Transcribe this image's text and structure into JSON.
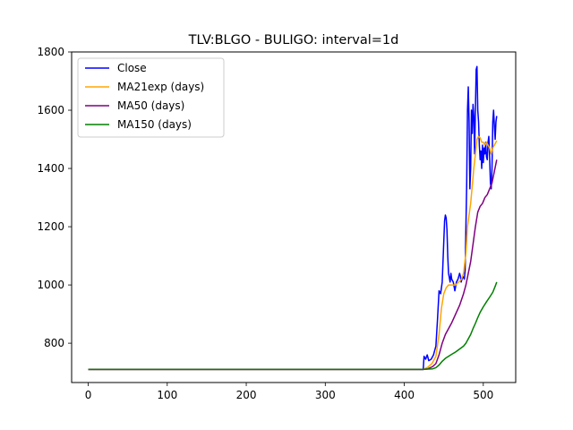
{
  "chart_data": {
    "type": "line",
    "title": "TLV:BLGO - BULIGO: interval=1d",
    "xlabel": "",
    "ylabel": "",
    "xlim": [
      -21,
      541
    ],
    "ylim": [
      665,
      1800
    ],
    "x_ticks": [
      "0",
      "100",
      "200",
      "300",
      "400",
      "500"
    ],
    "x_tick_values": [
      0,
      100,
      200,
      300,
      400,
      500
    ],
    "y_ticks": [
      "800",
      "1000",
      "1200",
      "1400",
      "1600",
      "1800"
    ],
    "y_tick_values": [
      800,
      1000,
      1200,
      1400,
      1600,
      1800
    ],
    "grid": false,
    "legend_position": "upper-left",
    "series": [
      {
        "name": "Close",
        "color": "#0000ff",
        "points": [
          [
            0,
            710
          ],
          [
            424,
            710
          ],
          [
            425,
            755
          ],
          [
            427,
            745
          ],
          [
            429,
            760
          ],
          [
            431,
            740
          ],
          [
            434,
            745
          ],
          [
            437,
            760
          ],
          [
            440,
            790
          ],
          [
            442,
            880
          ],
          [
            444,
            980
          ],
          [
            446,
            970
          ],
          [
            448,
            1010
          ],
          [
            450,
            1150
          ],
          [
            451,
            1220
          ],
          [
            452,
            1240
          ],
          [
            453,
            1230
          ],
          [
            454,
            1190
          ],
          [
            455,
            1100
          ],
          [
            456,
            1040
          ],
          [
            458,
            1010
          ],
          [
            459,
            1040
          ],
          [
            460,
            1020
          ],
          [
            462,
            1010
          ],
          [
            464,
            980
          ],
          [
            466,
            1010
          ],
          [
            468,
            1020
          ],
          [
            470,
            1040
          ],
          [
            471,
            1030
          ],
          [
            472,
            1010
          ],
          [
            474,
            1030
          ],
          [
            476,
            1020
          ],
          [
            477,
            1050
          ],
          [
            478,
            1200
          ],
          [
            479,
            1350
          ],
          [
            480,
            1600
          ],
          [
            481,
            1680
          ],
          [
            482,
            1560
          ],
          [
            483,
            1330
          ],
          [
            484,
            1400
          ],
          [
            485,
            1600
          ],
          [
            486,
            1520
          ],
          [
            487,
            1620
          ],
          [
            488,
            1580
          ],
          [
            489,
            1450
          ],
          [
            490,
            1600
          ],
          [
            491,
            1740
          ],
          [
            492,
            1750
          ],
          [
            493,
            1600
          ],
          [
            494,
            1560
          ],
          [
            495,
            1480
          ],
          [
            496,
            1430
          ],
          [
            497,
            1460
          ],
          [
            498,
            1400
          ],
          [
            499,
            1480
          ],
          [
            500,
            1420
          ],
          [
            501,
            1470
          ],
          [
            502,
            1450
          ],
          [
            503,
            1490
          ],
          [
            504,
            1440
          ],
          [
            505,
            1430
          ],
          [
            506,
            1490
          ],
          [
            507,
            1510
          ],
          [
            508,
            1440
          ],
          [
            509,
            1350
          ],
          [
            510,
            1330
          ],
          [
            511,
            1400
          ],
          [
            512,
            1560
          ],
          [
            513,
            1600
          ],
          [
            514,
            1550
          ],
          [
            515,
            1500
          ],
          [
            516,
            1560
          ],
          [
            517,
            1580
          ]
        ]
      },
      {
        "name": "MA21exp (days)",
        "color": "#ffa500",
        "points": [
          [
            0,
            710
          ],
          [
            424,
            710
          ],
          [
            430,
            718
          ],
          [
            435,
            730
          ],
          [
            440,
            755
          ],
          [
            444,
            830
          ],
          [
            447,
            920
          ],
          [
            450,
            970
          ],
          [
            453,
            990
          ],
          [
            456,
            1000
          ],
          [
            460,
            1000
          ],
          [
            465,
            1000
          ],
          [
            468,
            1008
          ],
          [
            472,
            1018
          ],
          [
            475,
            1040
          ],
          [
            478,
            1110
          ],
          [
            480,
            1200
          ],
          [
            482,
            1240
          ],
          [
            484,
            1280
          ],
          [
            486,
            1340
          ],
          [
            488,
            1400
          ],
          [
            490,
            1450
          ],
          [
            492,
            1500
          ],
          [
            494,
            1510
          ],
          [
            496,
            1505
          ],
          [
            498,
            1490
          ],
          [
            500,
            1490
          ],
          [
            502,
            1480
          ],
          [
            504,
            1490
          ],
          [
            506,
            1480
          ],
          [
            508,
            1470
          ],
          [
            510,
            1450
          ],
          [
            512,
            1470
          ],
          [
            514,
            1480
          ],
          [
            516,
            1490
          ],
          [
            517,
            1495
          ]
        ]
      },
      {
        "name": "MA50 (days)",
        "color": "#800080",
        "points": [
          [
            0,
            710
          ],
          [
            424,
            710
          ],
          [
            430,
            712
          ],
          [
            436,
            720
          ],
          [
            440,
            730
          ],
          [
            444,
            760
          ],
          [
            448,
            800
          ],
          [
            452,
            830
          ],
          [
            456,
            850
          ],
          [
            460,
            870
          ],
          [
            465,
            900
          ],
          [
            470,
            930
          ],
          [
            475,
            970
          ],
          [
            478,
            1000
          ],
          [
            481,
            1040
          ],
          [
            484,
            1080
          ],
          [
            487,
            1140
          ],
          [
            490,
            1200
          ],
          [
            493,
            1250
          ],
          [
            496,
            1270
          ],
          [
            499,
            1280
          ],
          [
            502,
            1300
          ],
          [
            505,
            1310
          ],
          [
            508,
            1330
          ],
          [
            511,
            1350
          ],
          [
            514,
            1390
          ],
          [
            517,
            1430
          ]
        ]
      },
      {
        "name": "MA150 (days)",
        "color": "#008000",
        "points": [
          [
            0,
            710
          ],
          [
            424,
            710
          ],
          [
            430,
            711
          ],
          [
            436,
            712
          ],
          [
            440,
            716
          ],
          [
            444,
            725
          ],
          [
            448,
            738
          ],
          [
            452,
            748
          ],
          [
            456,
            755
          ],
          [
            460,
            762
          ],
          [
            465,
            770
          ],
          [
            470,
            780
          ],
          [
            475,
            790
          ],
          [
            478,
            800
          ],
          [
            481,
            815
          ],
          [
            484,
            830
          ],
          [
            487,
            850
          ],
          [
            490,
            868
          ],
          [
            493,
            888
          ],
          [
            496,
            906
          ],
          [
            500,
            925
          ],
          [
            504,
            942
          ],
          [
            508,
            958
          ],
          [
            512,
            975
          ],
          [
            515,
            995
          ],
          [
            517,
            1010
          ]
        ]
      }
    ]
  }
}
